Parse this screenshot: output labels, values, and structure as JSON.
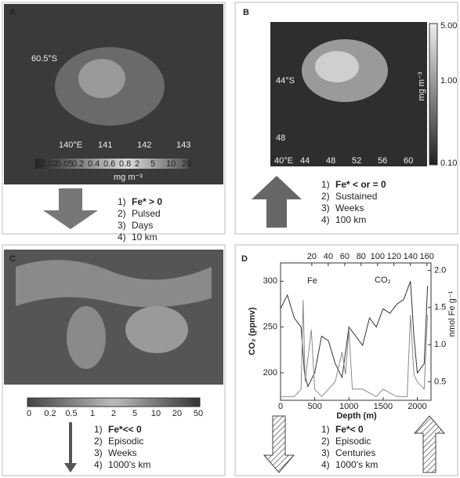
{
  "panels": [
    {
      "label": "A",
      "map_labels": [
        "60.5°S"
      ],
      "lon_labels": [
        "140°E",
        "141",
        "142",
        "143"
      ],
      "colorbar": {
        "ticks": [
          "0.02",
          "0.05",
          "0.2",
          "0.4",
          "0.6",
          "0.8",
          "2",
          "5",
          "10",
          "20"
        ],
        "unit": "mg m⁻³"
      },
      "items": [
        {
          "num": "1)",
          "text": "Fe* > 0"
        },
        {
          "num": "2)",
          "text": "Pulsed"
        },
        {
          "num": "3)",
          "text": "Days"
        },
        {
          "num": "4)",
          "text": "10 km"
        }
      ]
    },
    {
      "label": "B",
      "map_labels": [
        "44°S",
        "48"
      ],
      "lon_labels": [
        "40°E",
        "44",
        "48",
        "52",
        "56",
        "60"
      ],
      "colorbar": {
        "ticks": [
          "5.00",
          "1.00",
          "0.10"
        ],
        "unit": "mg m⁻³"
      },
      "items": [
        {
          "num": "1)",
          "text": "Fe* < or = 0"
        },
        {
          "num": "2)",
          "text": "Sustained"
        },
        {
          "num": "3)",
          "text": "Weeks"
        },
        {
          "num": "4)",
          "text": "100 km"
        }
      ]
    },
    {
      "label": "C",
      "colorbar": {
        "ticks": [
          "0",
          "0.2",
          "0.5",
          "1",
          "2",
          "5",
          "10",
          "20",
          "50"
        ]
      },
      "items": [
        {
          "num": "1)",
          "text": "Fe*<< 0"
        },
        {
          "num": "2)",
          "text": "Episodic"
        },
        {
          "num": "3)",
          "text": "Weeks"
        },
        {
          "num": "4)",
          "text": "1000's km"
        }
      ]
    },
    {
      "label": "D",
      "items": [
        {
          "num": "1)",
          "text": "Fe*< 0"
        },
        {
          "num": "2)",
          "text": "Episodic"
        },
        {
          "num": "3)",
          "text": "Centuries"
        },
        {
          "num": "4)",
          "text": "1000's km"
        }
      ]
    }
  ],
  "chart_data": {
    "type": "line",
    "x_label": "Depth (m)",
    "y_label": "CO₂ (ppmv)",
    "y2_label": "nmol Fe g⁻¹",
    "xlim": [
      0,
      2200
    ],
    "xticks": [
      0,
      500,
      1000,
      1500,
      2000
    ],
    "x2lim": [
      -18,
      165
    ],
    "x2ticks": [
      20,
      40,
      60,
      80,
      100,
      120,
      140,
      160
    ],
    "ylim": [
      170,
      320
    ],
    "yticks": [
      200,
      250,
      300
    ],
    "y2lim": [
      0.25,
      2.1
    ],
    "y2ticks": [
      0.5,
      {
        "value": 1.0,
        "label": "1.0"
      },
      1.5,
      {
        "value": 2.0,
        "label": "2.0"
      }
    ],
    "series": [
      {
        "name": "CO₂",
        "color": "#333333",
        "x": [
          0,
          100,
          200,
          300,
          350,
          400,
          500,
          600,
          700,
          800,
          900,
          1000,
          1100,
          1200,
          1300,
          1400,
          1500,
          1600,
          1700,
          1800,
          1900,
          1950,
          2000,
          2100,
          2150
        ],
        "values": [
          270,
          285,
          260,
          250,
          200,
          185,
          200,
          240,
          235,
          210,
          195,
          250,
          240,
          230,
          260,
          250,
          270,
          265,
          275,
          280,
          300,
          240,
          200,
          210,
          295
        ]
      },
      {
        "name": "Fe",
        "color": "#8a8a8a",
        "axis": "y2",
        "x": [
          0,
          200,
          300,
          330,
          360,
          450,
          500,
          600,
          800,
          900,
          950,
          1000,
          1050,
          1200,
          1400,
          1500,
          1700,
          1850,
          1900,
          1950,
          2000,
          2100,
          2150
        ],
        "values": [
          0.3,
          0.3,
          0.4,
          1.6,
          0.5,
          1.2,
          0.4,
          0.3,
          0.5,
          0.9,
          0.6,
          1.2,
          0.4,
          0.4,
          0.3,
          0.4,
          0.3,
          0.3,
          1.4,
          0.6,
          0.5,
          0.4,
          1.4
        ]
      }
    ]
  }
}
